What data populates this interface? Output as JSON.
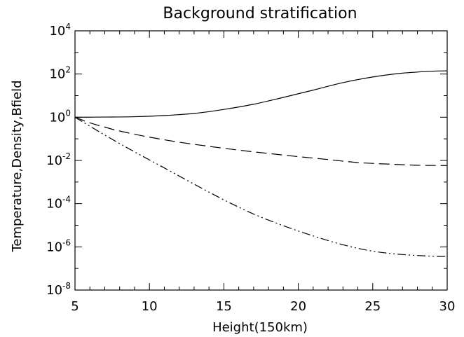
{
  "chart_data": {
    "type": "line",
    "title": "Background stratification",
    "xlabel": "Height(150km)",
    "ylabel": "Temperature,Density,Bfield",
    "xlim": [
      5,
      30
    ],
    "ylim": [
      1e-08,
      10000.0
    ],
    "yscale": "log",
    "grid": false,
    "xticks": [
      5,
      10,
      15,
      20,
      25,
      30
    ],
    "yticks": [
      {
        "base": "10",
        "exp": "-8",
        "value": 1e-08
      },
      {
        "base": "10",
        "exp": "-6",
        "value": 1e-06
      },
      {
        "base": "10",
        "exp": "-4",
        "value": 0.0001
      },
      {
        "base": "10",
        "exp": "-2",
        "value": 0.01
      },
      {
        "base": "10",
        "exp": "0",
        "value": 1
      },
      {
        "base": "10",
        "exp": "2",
        "value": 100
      },
      {
        "base": "10",
        "exp": "4",
        "value": 10000
      }
    ],
    "series": [
      {
        "style": "solid",
        "x": [
          5,
          7,
          9,
          11,
          13,
          15,
          17,
          19,
          21,
          23,
          25,
          27,
          29,
          30
        ],
        "y": [
          1.0,
          1.02,
          1.06,
          1.2,
          1.5,
          2.3,
          4.0,
          8.3,
          18,
          40,
          73,
          110,
          135,
          140
        ]
      },
      {
        "style": "dashed",
        "x": [
          5,
          6,
          7,
          8,
          10,
          12,
          14,
          16,
          18,
          20,
          22,
          24,
          26,
          28,
          30
        ],
        "y": [
          1.0,
          0.55,
          0.35,
          0.23,
          0.12,
          0.07,
          0.045,
          0.03,
          0.021,
          0.015,
          0.011,
          0.008,
          0.0068,
          0.006,
          0.0058
        ]
      },
      {
        "style": "dash-dot-dot",
        "x": [
          5,
          7,
          9,
          11,
          13,
          15,
          17,
          19,
          21,
          23,
          25,
          27,
          29,
          30
        ],
        "y": [
          1.0,
          0.15,
          0.025,
          0.0045,
          0.0008,
          0.00015,
          3.3e-05,
          9.5e-06,
          3.2e-06,
          1.25e-06,
          6.3e-07,
          4.4e-07,
          3.7e-07,
          3.6e-07
        ]
      }
    ]
  }
}
